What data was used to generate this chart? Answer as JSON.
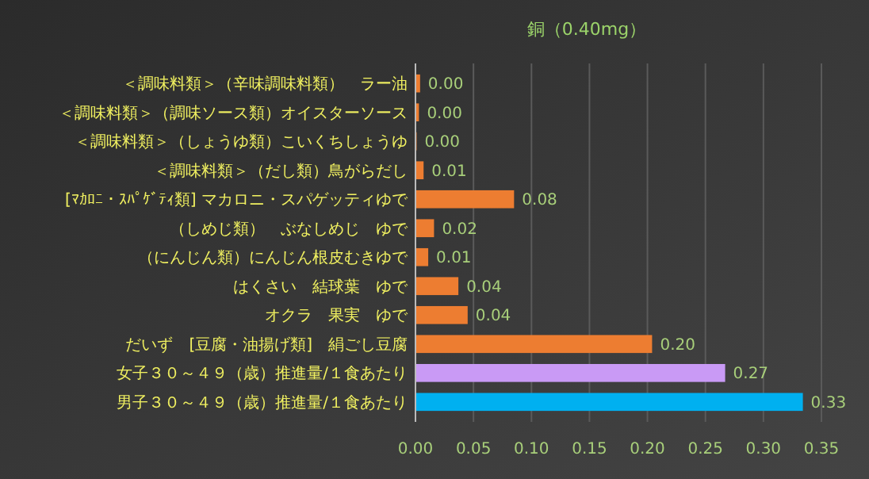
{
  "chart_data": {
    "type": "bar",
    "orientation": "horizontal",
    "title": "銅（0.40mg）",
    "categories": [
      "＜調味料類＞（辛味調味料類）　ラー油",
      "＜調味料類＞（調味ソース類）オイスターソース",
      "＜調味料類＞（しょうゆ類）こいくちしょうゆ",
      "＜調味料類＞（だし類）鳥がらだし",
      "[ﾏｶﾛﾆ・ｽﾊﾟｹﾞﾃｨ類] マカロニ・スパゲッティゆで",
      "（しめじ類）　ぶなしめじ　ゆで",
      "（にんじん類）にんじん根皮むきゆで",
      "はくさい　結球葉　ゆで",
      "オクラ　果実　ゆで",
      "だいず　[豆腐・油揚げ類]　絹ごし豆腐",
      "女子３０～４９（歳）推進量/１食あたり",
      "男子３０～４９（歳）推進量/１食あたり"
    ],
    "values": [
      0.004,
      0.003,
      0.001,
      0.007,
      0.085,
      0.016,
      0.011,
      0.037,
      0.045,
      0.204,
      0.267,
      0.334
    ],
    "value_labels": [
      "0.00",
      "0.00",
      "0.00",
      "0.01",
      "0.08",
      "0.02",
      "0.01",
      "0.04",
      "0.04",
      "0.20",
      "0.27",
      "0.33"
    ],
    "colors": [
      "#ed7d31",
      "#ed7d31",
      "#ed7d31",
      "#ed7d31",
      "#ed7d31",
      "#ed7d31",
      "#ed7d31",
      "#ed7d31",
      "#ed7d31",
      "#ed7d31",
      "#c99af5",
      "#00b0f0"
    ],
    "xlim": [
      0,
      0.35
    ],
    "xticks": [
      {
        "value": 0,
        "label": "0.00"
      },
      {
        "value": 0.05,
        "label": "0.05"
      },
      {
        "value": 0.1,
        "label": "0.10"
      },
      {
        "value": 0.15,
        "label": "0.15"
      },
      {
        "value": 0.2,
        "label": "0.20"
      },
      {
        "value": 0.25,
        "label": "0.25"
      },
      {
        "value": 0.3,
        "label": "0.30"
      },
      {
        "value": 0.35,
        "label": "0.35"
      }
    ],
    "grid": "x"
  }
}
